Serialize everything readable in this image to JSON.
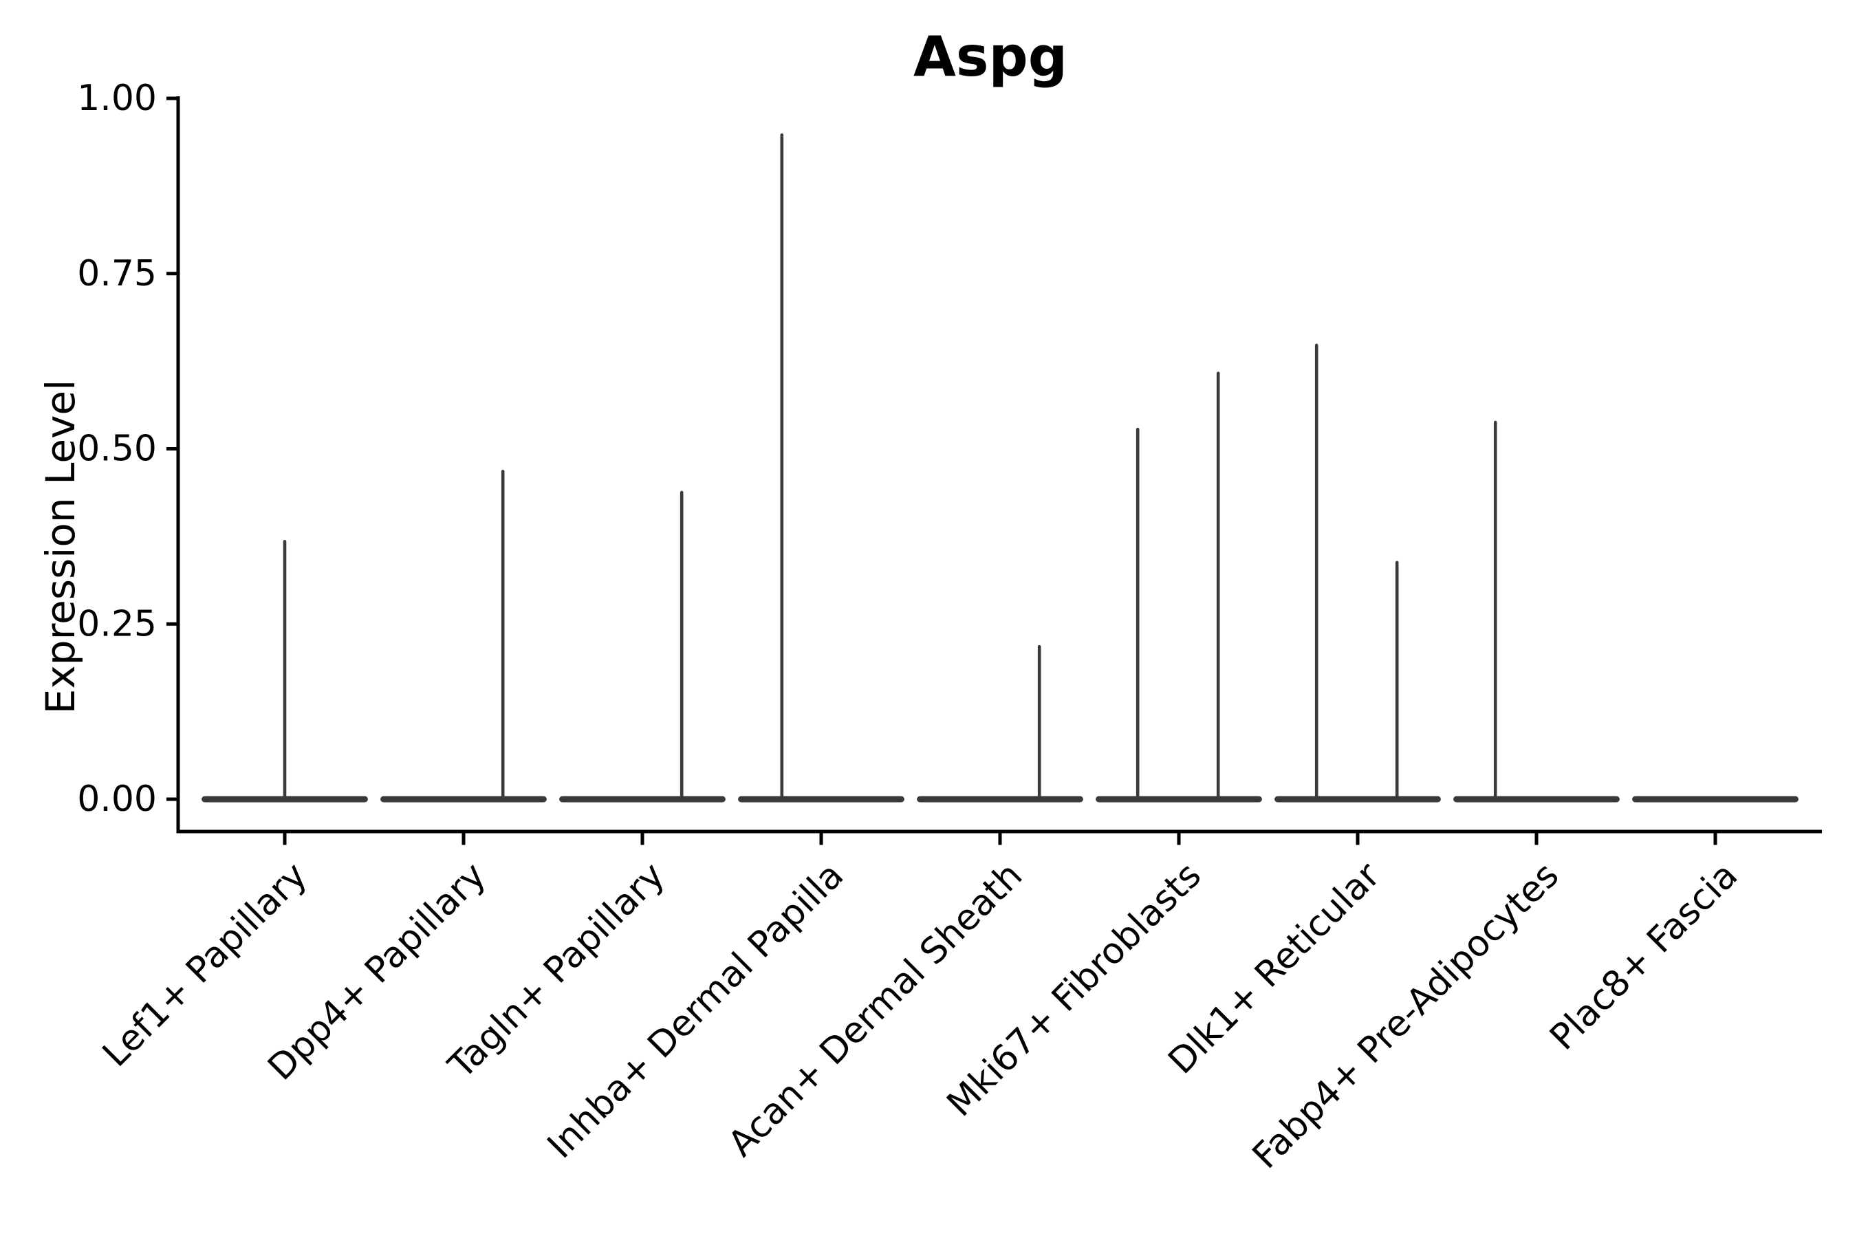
{
  "figure": {
    "title": "Aspg",
    "y_axis_label": "Expression Level"
  },
  "colors": {
    "violin": "#3a3a3a",
    "axis": "#000000",
    "background": "#ffffff",
    "text": "#000000"
  },
  "chart_data": {
    "type": "violin",
    "title": "Aspg",
    "xlabel": "",
    "ylabel": "Expression Level",
    "ylim": [
      -0.046,
      1.0
    ],
    "grid": false,
    "legend": false,
    "y_ticks": [
      {
        "label": "0.00",
        "value": 0.0
      },
      {
        "label": "0.25",
        "value": 0.25
      },
      {
        "label": "0.50",
        "value": 0.5
      },
      {
        "label": "0.75",
        "value": 0.75
      },
      {
        "label": "1.00",
        "value": 1.0
      }
    ],
    "categories": [
      "Lef1+ Papillary",
      "Dpp4+ Papillary",
      "Tagln+ Papillary",
      "Inhba+ Dermal Papilla",
      "Acan+ Dermal Sheath",
      "Mki67+ Fibroblasts",
      "Dlk1+ Reticular",
      "Fabp4+ Pre-Adipocytes",
      "Plac8+ Fascia"
    ],
    "violins": [
      {
        "category": "Lef1+ Papillary",
        "body_value": 0.0,
        "body_width_frac": 0.93,
        "spikes": [
          {
            "offset_frac": 0.0,
            "max": 0.37
          }
        ]
      },
      {
        "category": "Dpp4+ Papillary",
        "body_value": 0.0,
        "body_width_frac": 0.93,
        "spikes": [
          {
            "offset_frac": 0.22,
            "max": 0.47
          }
        ]
      },
      {
        "category": "Tagln+ Papillary",
        "body_value": 0.0,
        "body_width_frac": 0.93,
        "spikes": [
          {
            "offset_frac": 0.22,
            "max": 0.44
          }
        ]
      },
      {
        "category": "Inhba+ Dermal Papilla",
        "body_value": 0.0,
        "body_width_frac": 0.93,
        "spikes": [
          {
            "offset_frac": -0.22,
            "max": 0.95
          }
        ]
      },
      {
        "category": "Acan+ Dermal Sheath",
        "body_value": 0.0,
        "body_width_frac": 0.93,
        "spikes": [
          {
            "offset_frac": 0.22,
            "max": 0.22
          }
        ]
      },
      {
        "category": "Mki67+ Fibroblasts",
        "body_value": 0.0,
        "body_width_frac": 0.93,
        "spikes": [
          {
            "offset_frac": -0.23,
            "max": 0.53
          },
          {
            "offset_frac": 0.22,
            "max": 0.61
          }
        ]
      },
      {
        "category": "Dlk1+ Reticular",
        "body_value": 0.0,
        "body_width_frac": 0.93,
        "spikes": [
          {
            "offset_frac": -0.23,
            "max": 0.65
          },
          {
            "offset_frac": 0.22,
            "max": 0.34
          }
        ]
      },
      {
        "category": "Fabp4+ Pre-Adipocytes",
        "body_value": 0.0,
        "body_width_frac": 0.93,
        "spikes": [
          {
            "offset_frac": -0.23,
            "max": 0.54
          }
        ]
      },
      {
        "category": "Plac8+ Fascia",
        "body_value": 0.0,
        "body_width_frac": 0.93,
        "spikes": []
      }
    ]
  }
}
